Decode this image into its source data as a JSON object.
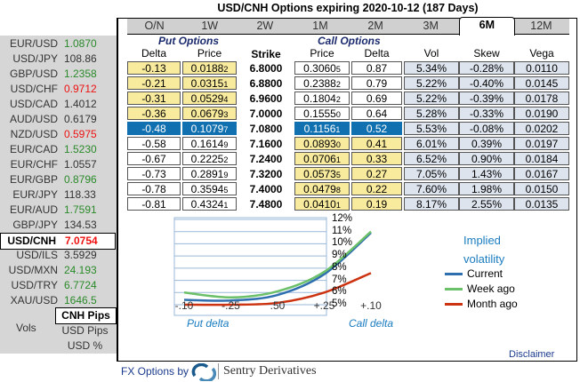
{
  "title": "USD/CNH Options expiring 2020-10-12 (187 Days)",
  "tabs": [
    "O/N",
    "1W",
    "2W",
    "1M",
    "2M",
    "3M",
    "6M",
    "12M"
  ],
  "active_tab": "6M",
  "quotes": [
    {
      "pair": "EUR/USD",
      "value": "1.0870",
      "color": "#2a8a2a"
    },
    {
      "pair": "USD/JPY",
      "value": "108.86",
      "color": "#333333"
    },
    {
      "pair": "GBP/USD",
      "value": "1.2358",
      "color": "#2a8a2a"
    },
    {
      "pair": "USD/CHF",
      "value": "0.9712",
      "color": "#ee1111"
    },
    {
      "pair": "USD/CAD",
      "value": "1.4012",
      "color": "#333333"
    },
    {
      "pair": "AUD/USD",
      "value": "0.6179",
      "color": "#333333"
    },
    {
      "pair": "NZD/USD",
      "value": "0.5975",
      "color": "#ee1111"
    },
    {
      "pair": "EUR/CAD",
      "value": "1.5230",
      "color": "#2a8a2a"
    },
    {
      "pair": "EUR/CHF",
      "value": "1.0557",
      "color": "#333333"
    },
    {
      "pair": "EUR/GBP",
      "value": "0.8796",
      "color": "#2a8a2a"
    },
    {
      "pair": "EUR/JPY",
      "value": "118.33",
      "color": "#333333"
    },
    {
      "pair": "EUR/AUD",
      "value": "1.7591",
      "color": "#2a8a2a"
    },
    {
      "pair": "GBP/JPY",
      "value": "134.53",
      "color": "#333333"
    },
    {
      "pair": "USD/CNH",
      "value": "7.0754",
      "color": "#ee1111",
      "selected": true
    },
    {
      "pair": "USD/ILS",
      "value": "3.5929",
      "color": "#333333"
    },
    {
      "pair": "USD/MXN",
      "value": "24.193",
      "color": "#2a8a2a"
    },
    {
      "pair": "USD/TRY",
      "value": "6.7724",
      "color": "#2a8a2a"
    },
    {
      "pair": "XAU/USD",
      "value": "1646.5",
      "color": "#2a8a2a"
    }
  ],
  "units": {
    "label": "Vols",
    "options": [
      "CNH Pips",
      "USD Pips",
      "USD %"
    ],
    "selected": "CNH Pips"
  },
  "headers": {
    "put_group": "Put Options",
    "call_group": "Call Options",
    "delta": "Delta",
    "price": "Price",
    "strike": "Strike",
    "vol": "Vol",
    "skew": "Skew",
    "vega": "Vega"
  },
  "rows": [
    {
      "put_delta": "-0.13",
      "put_price": "0.0188",
      "put_price_sub": "2",
      "strike": "6.8000",
      "call_price": "0.3060",
      "call_price_sub": "5",
      "call_delta": "0.87",
      "vol": "5.34%",
      "skew": "-0.28%",
      "vega": "0.0110",
      "state": "put-otm"
    },
    {
      "put_delta": "-0.21",
      "put_price": "0.0315",
      "put_price_sub": "1",
      "strike": "6.8800",
      "call_price": "0.2388",
      "call_price_sub": "2",
      "call_delta": "0.79",
      "vol": "5.22%",
      "skew": "-0.40%",
      "vega": "0.0145",
      "state": "put-otm"
    },
    {
      "put_delta": "-0.31",
      "put_price": "0.0529",
      "put_price_sub": "4",
      "strike": "6.9600",
      "call_price": "0.1804",
      "call_price_sub": "2",
      "call_delta": "0.69",
      "vol": "5.22%",
      "skew": "-0.39%",
      "vega": "0.0178",
      "state": "put-otm"
    },
    {
      "put_delta": "-0.36",
      "put_price": "0.0679",
      "put_price_sub": "3",
      "strike": "7.0000",
      "call_price": "0.1555",
      "call_price_sub": "0",
      "call_delta": "0.64",
      "vol": "5.28%",
      "skew": "-0.33%",
      "vega": "0.0190",
      "state": "put-otm"
    },
    {
      "put_delta": "-0.48",
      "put_price": "0.1079",
      "put_price_sub": "7",
      "strike": "7.0800",
      "call_price": "0.1156",
      "call_price_sub": "1",
      "call_delta": "0.52",
      "vol": "5.53%",
      "skew": "-0.08%",
      "vega": "0.0202",
      "state": "atm"
    },
    {
      "put_delta": "-0.58",
      "put_price": "0.1614",
      "put_price_sub": "9",
      "strike": "7.1600",
      "call_price": "0.0893",
      "call_price_sub": "0",
      "call_delta": "0.41",
      "vol": "6.01%",
      "skew": "0.39%",
      "vega": "0.0197",
      "state": "call-otm"
    },
    {
      "put_delta": "-0.67",
      "put_price": "0.2225",
      "put_price_sub": "2",
      "strike": "7.2400",
      "call_price": "0.0706",
      "call_price_sub": "1",
      "call_delta": "0.33",
      "vol": "6.52%",
      "skew": "0.90%",
      "vega": "0.0184",
      "state": "call-otm"
    },
    {
      "put_delta": "-0.73",
      "put_price": "0.2891",
      "put_price_sub": "9",
      "strike": "7.3200",
      "call_price": "0.0573",
      "call_price_sub": "5",
      "call_delta": "0.27",
      "vol": "7.05%",
      "skew": "1.43%",
      "vega": "0.0167",
      "state": "call-otm"
    },
    {
      "put_delta": "-0.78",
      "put_price": "0.3594",
      "put_price_sub": "5",
      "strike": "7.4000",
      "call_price": "0.0479",
      "call_price_sub": "8",
      "call_delta": "0.22",
      "vol": "7.60%",
      "skew": "1.98%",
      "vega": "0.0150",
      "state": "call-otm"
    },
    {
      "put_delta": "-0.81",
      "put_price": "0.4324",
      "put_price_sub": "1",
      "strike": "7.4800",
      "call_price": "0.0410",
      "call_price_sub": "1",
      "call_delta": "0.19",
      "vol": "8.17%",
      "skew": "2.55%",
      "vega": "0.0135",
      "state": "call-otm"
    }
  ],
  "colors": {
    "otm": "#f8eb9e",
    "atm": "#1170b0",
    "vol_bg": "#dde4ee",
    "current": "#2f6fb0",
    "week": "#6cc06a",
    "month": "#cc3311"
  },
  "chart_data": {
    "type": "line",
    "title": "Implied volatility",
    "categories": [
      "-.10",
      "-.25",
      ".50",
      "+.25",
      "+.10"
    ],
    "xlabel_left": "Put delta",
    "xlabel_right": "Call delta",
    "yticks": [
      "5%",
      "6%",
      "7%",
      "8%",
      "9%",
      "10%",
      "11%",
      "12%"
    ],
    "ylim": [
      5,
      12
    ],
    "series": [
      {
        "name": "Current",
        "values": [
          5.4,
          5.35,
          5.8,
          7.5,
          10.9
        ],
        "color": "#2f6fb0"
      },
      {
        "name": "Week ago",
        "values": [
          6.0,
          5.6,
          6.1,
          7.7,
          11.0
        ],
        "color": "#6cc06a"
      },
      {
        "name": "Month ago",
        "values": [
          5.0,
          5.0,
          5.15,
          6.0,
          7.6
        ],
        "color": "#cc3311"
      }
    ]
  },
  "footer": {
    "prefix": "FX Options by",
    "brand": "Sentry Derivatives",
    "disclaimer": "Disclaimer"
  }
}
